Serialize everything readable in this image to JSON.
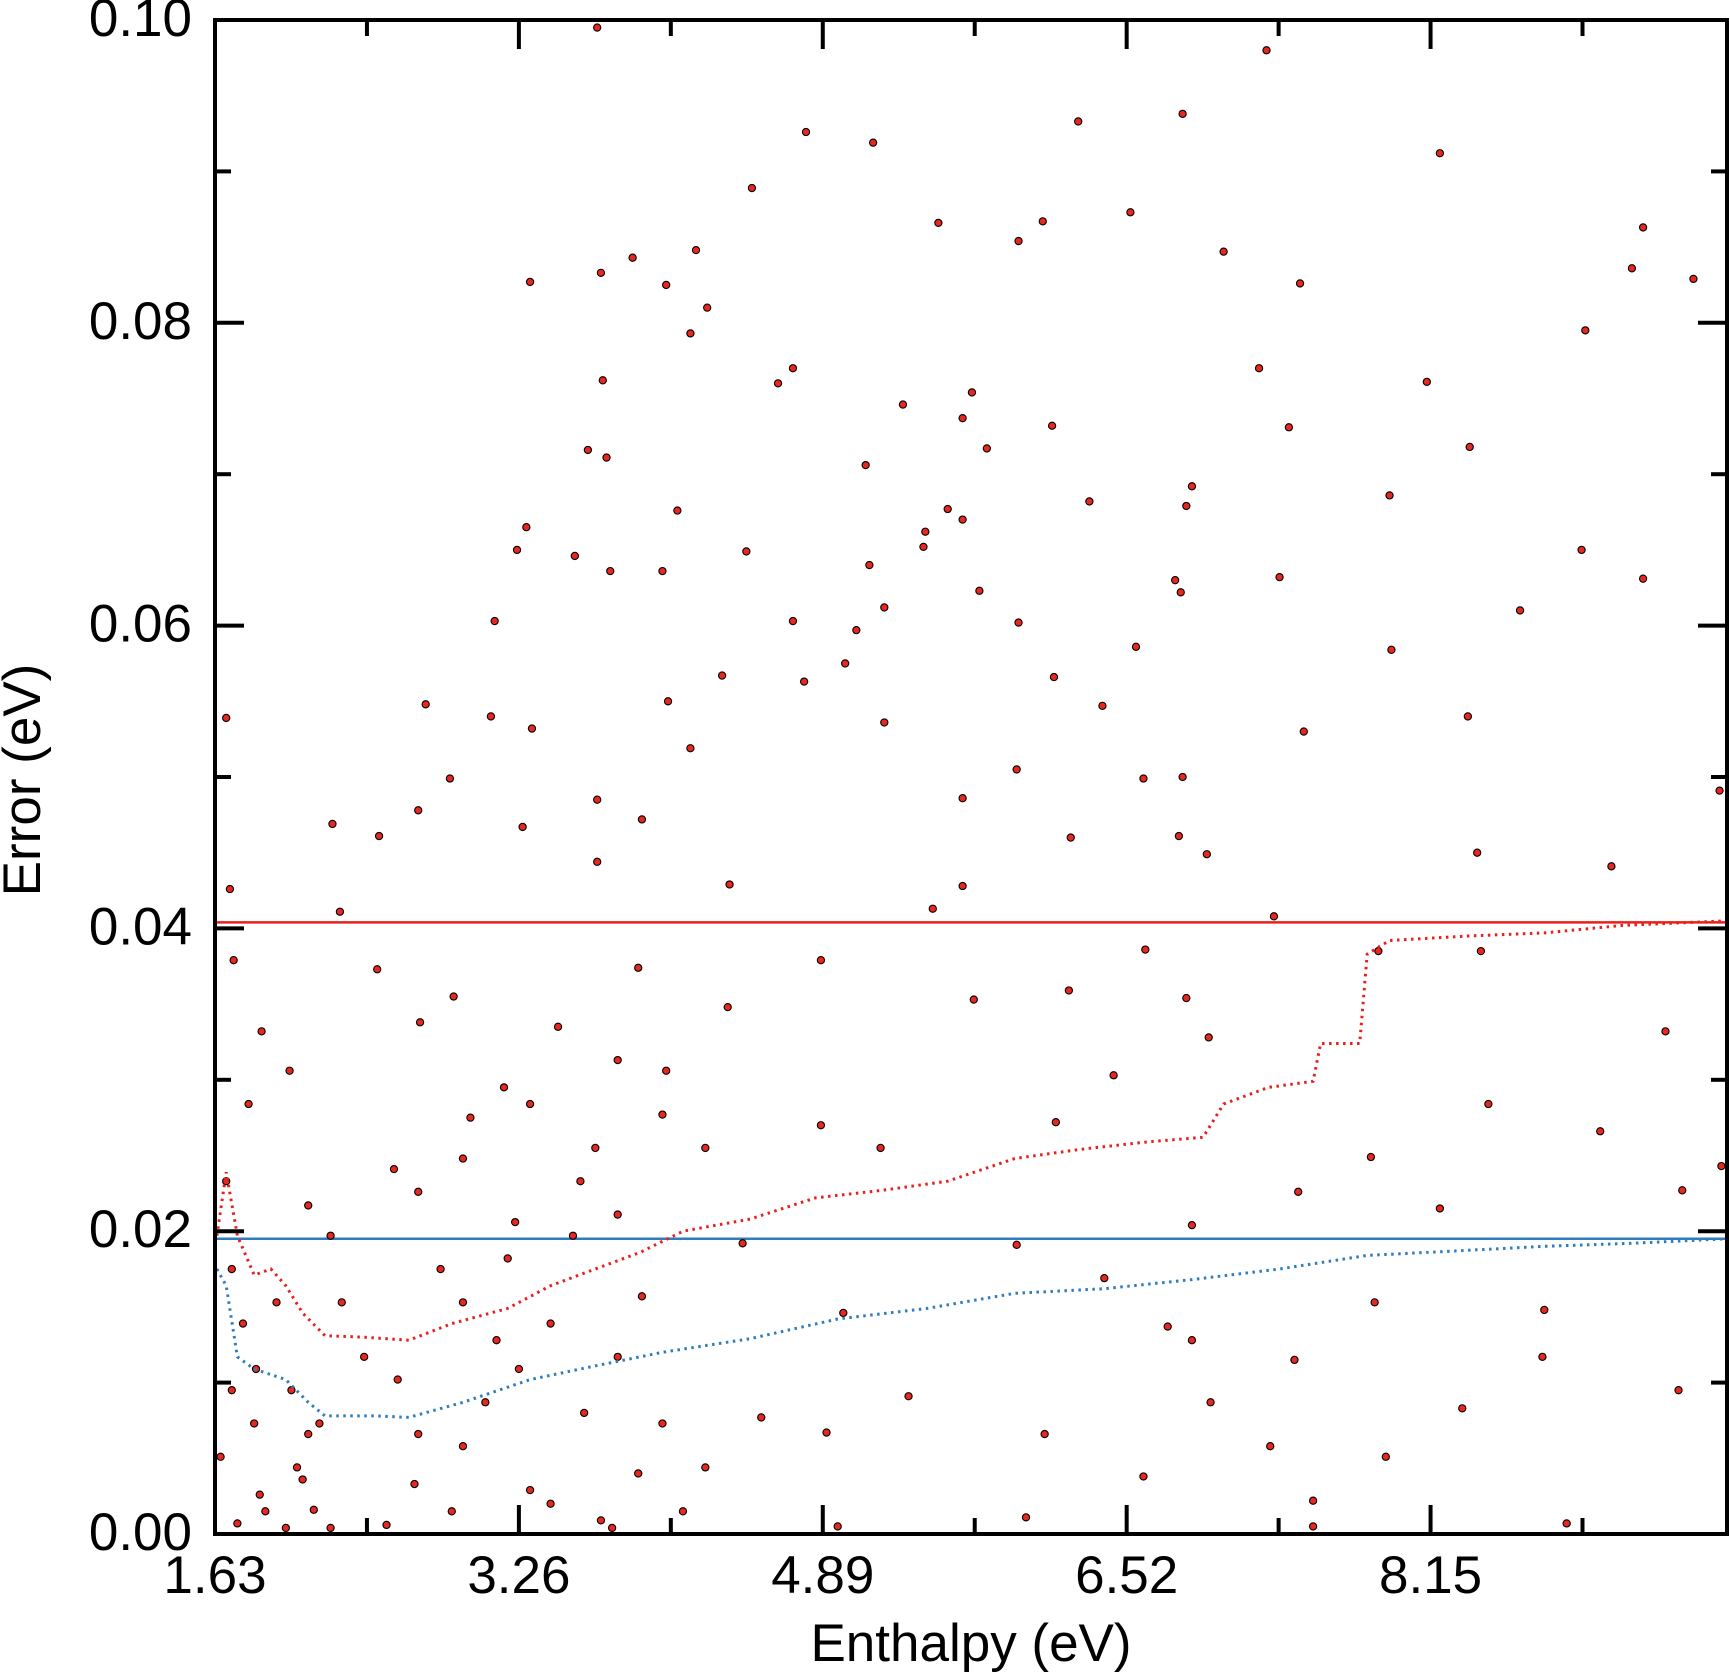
{
  "chart_data": {
    "type": "scatter",
    "xlabel": "Enthalpy (eV)",
    "ylabel": "Error (eV)",
    "xlim": [
      1.63,
      9.74
    ],
    "ylim": [
      0,
      0.1
    ],
    "xticks": [
      1.63,
      3.26,
      4.89,
      6.52,
      8.15
    ],
    "xminor_ticks": [
      2.445,
      4.075,
      5.705,
      7.335,
      8.965
    ],
    "yticks": [
      {
        "value": 0,
        "label": "0.00"
      },
      {
        "value": 0.02,
        "label": "0.02"
      },
      {
        "value": 0.04,
        "label": "0.04"
      },
      {
        "value": 0.06,
        "label": "0.06"
      },
      {
        "value": 0.08,
        "label": "0.08"
      },
      {
        "value": 0.1,
        "label": "0.10"
      }
    ],
    "yminor_ticks": [
      0.01,
      0.03,
      0.05,
      0.07,
      0.09
    ],
    "marker_color": "#e8281e",
    "marker_edge_color": "#000000",
    "x": [
      3.68,
      7.27,
      6.82,
      6.26,
      4.8,
      5.16,
      8.2,
      4.51,
      6.54,
      6.07,
      5.51,
      9.29,
      5.94,
      7.04,
      4.21,
      3.87,
      3.7,
      9.23,
      9.56,
      3.32,
      4.05,
      7.45,
      4.27,
      4.18,
      8.98,
      4.73,
      7.23,
      4.65,
      8.13,
      3.71,
      5.69,
      5.32,
      5.64,
      6.12,
      7.39,
      3.63,
      5.77,
      8.36,
      3.73,
      5.12,
      6.87,
      7.93,
      6.32,
      5.56,
      4.11,
      6.84,
      5.64,
      3.3,
      5.44,
      5.43,
      3.25,
      4.48,
      8.96,
      3.56,
      7.34,
      9.29,
      4.03,
      3.75,
      5.14,
      6.78,
      6.81,
      5.73,
      4.73,
      3.13,
      5.22,
      8.63,
      5.07,
      5.94,
      7.94,
      5.01,
      6.57,
      4.35,
      6.13,
      4.79,
      2.76,
      4.06,
      8.35,
      6.39,
      3.11,
      5.22,
      7.47,
      3.33,
      4.18,
      5.93,
      6.61,
      6.82,
      2.89,
      9.7,
      2.72,
      2.26,
      5.64,
      3.68,
      3.92,
      6.8,
      6.22,
      2.51,
      3.28,
      6.95,
      8.4,
      9.12,
      3.68,
      4.39,
      5.64,
      1.71,
      5.48,
      7.31,
      2.3,
      7.87,
      8.42,
      6.62,
      1.73,
      2.5,
      4.88,
      3.9,
      2.91,
      5.7,
      6.84,
      6.21,
      1.88,
      4.38,
      6.96,
      3.47,
      2.73,
      9.41,
      4.05,
      2.03,
      6.45,
      3.18,
      8.46,
      4.88,
      3.0,
      9.06,
      6.14,
      5.2,
      7.83,
      2.59,
      9.71,
      3.59,
      7.44,
      9.5,
      2.13,
      8.2,
      3.24,
      6.87,
      4.46,
      5.93,
      1.72,
      2.84,
      6.4,
      3.92,
      7.85,
      2.31,
      8.76,
      5.0,
      6.74,
      3.14,
      6.87,
      8.75,
      7.42,
      1.85,
      2.61,
      9.48,
      5.35,
      3.61,
      6.97,
      4.56,
      8.32,
      2.19,
      6.08,
      2.96,
      7.29,
      4.91,
      1.66,
      2.07,
      7.91,
      3.9,
      6.61,
      2.7,
      1.87,
      7.52,
      3.43,
      2.16,
      4.14,
      5.98,
      1.75,
      2.55,
      3.7,
      8.88,
      4.97,
      7.52,
      2.25,
      2.1,
      2.13,
      2.04,
      1.84,
      1.72,
      1.9,
      2.01,
      2.72,
      3.08,
      3.26,
      3.43,
      2.96,
      3.2,
      3.55,
      3.79,
      3.67,
      2.96,
      3.32,
      3.79,
      4.03,
      4.26,
      2.72,
      2.25,
      1.96,
      2.43,
      3.79,
      4.03,
      4.26,
      3.32,
      2.9,
      3.76,
      1.78,
      1.69,
      1.81,
      1.69
    ],
    "y": [
      0.0995,
      0.098,
      0.0938,
      0.0933,
      0.0926,
      0.0919,
      0.0912,
      0.0889,
      0.0873,
      0.0867,
      0.0866,
      0.0863,
      0.0854,
      0.0847,
      0.0848,
      0.0843,
      0.0833,
      0.0836,
      0.0829,
      0.0827,
      0.0825,
      0.0826,
      0.081,
      0.0793,
      0.0795,
      0.077,
      0.077,
      0.076,
      0.0761,
      0.0762,
      0.0754,
      0.0746,
      0.0737,
      0.0732,
      0.0731,
      0.0716,
      0.0717,
      0.0718,
      0.0711,
      0.0706,
      0.0692,
      0.0686,
      0.0682,
      0.0677,
      0.0676,
      0.0679,
      0.067,
      0.0665,
      0.0662,
      0.0652,
      0.065,
      0.0649,
      0.065,
      0.0646,
      0.0632,
      0.0631,
      0.0636,
      0.0636,
      0.064,
      0.063,
      0.0622,
      0.0623,
      0.0603,
      0.0603,
      0.0612,
      0.061,
      0.0597,
      0.0602,
      0.0584,
      0.0575,
      0.0586,
      0.0567,
      0.0566,
      0.0563,
      0.0548,
      0.055,
      0.054,
      0.0547,
      0.054,
      0.0536,
      0.053,
      0.0532,
      0.0519,
      0.0505,
      0.0499,
      0.05,
      0.0499,
      0.0491,
      0.0478,
      0.0469,
      0.0486,
      0.0485,
      0.0472,
      0.0461,
      0.046,
      0.0461,
      0.0467,
      0.0449,
      0.045,
      0.0441,
      0.0444,
      0.0429,
      0.0428,
      0.0426,
      0.0413,
      0.0408,
      0.0411,
      0.0385,
      0.0385,
      0.0386,
      0.0379,
      0.0373,
      0.0379,
      0.0374,
      0.0355,
      0.0353,
      0.0354,
      0.0359,
      0.0332,
      0.0348,
      0.0328,
      0.0335,
      0.0338,
      0.0332,
      0.0306,
      0.0306,
      0.0303,
      0.0295,
      0.0284,
      0.027,
      0.0275,
      0.0266,
      0.0272,
      0.0255,
      0.0249,
      0.0241,
      0.0243,
      0.0233,
      0.0226,
      0.0227,
      0.0217,
      0.0215,
      0.0206,
      0.0204,
      0.0192,
      0.0191,
      0.0175,
      0.0175,
      0.0169,
      0.0157,
      0.0153,
      0.0153,
      0.0148,
      0.0146,
      0.0137,
      0.0128,
      0.0128,
      0.0117,
      0.0115,
      0.0109,
      0.0102,
      0.0095,
      0.0091,
      0.008,
      0.0087,
      0.0077,
      0.0083,
      0.0073,
      0.0066,
      0.0058,
      0.0058,
      0.0067,
      0.0051,
      0.0044,
      0.0051,
      0.004,
      0.0038,
      0.0033,
      0.0026,
      0.0022,
      0.002,
      0.0016,
      0.0015,
      0.0011,
      0.0007,
      0.0006,
      0.0009,
      0.0007,
      0.0005,
      0.0005,
      0.0004,
      0.0036,
      0.0066,
      0.0095,
      0.0073,
      0.0095,
      0.0015,
      0.0004,
      0.0066,
      0.0087,
      0.0109,
      0.0139,
      0.0153,
      0.0182,
      0.0197,
      0.0211,
      0.0255,
      0.0248,
      0.0284,
      0.0313,
      0.0277,
      0.0255,
      0.0226,
      0.0197,
      0.0153,
      0.0117,
      0.0117,
      0.0073,
      0.0044,
      0.0029,
      0.0015,
      0.0004,
      0.0139,
      0.0233,
      0.0284,
      0.0539
    ],
    "hlines": [
      {
        "color": "#e8201c",
        "value": 0.0404
      },
      {
        "color": "#2f7dbd",
        "value": 0.0195
      }
    ],
    "lines": [
      {
        "color": "#e8201c",
        "style": "dotted",
        "x": [
          1.64,
          1.69,
          1.75,
          1.84,
          1.93,
          2.01,
          2.1,
          2.22,
          2.43,
          2.67,
          2.9,
          3.2,
          3.43,
          3.67,
          3.91,
          4.14,
          4.5,
          4.85,
          5.21,
          5.56,
          5.92,
          6.27,
          6.63,
          6.93,
          7.04,
          7.28,
          7.52,
          7.56,
          7.77,
          7.81,
          7.93,
          8.35,
          8.76,
          9.18,
          9.74
        ],
        "y": [
          0.0197,
          0.0239,
          0.0197,
          0.0171,
          0.0175,
          0.0164,
          0.0146,
          0.0131,
          0.013,
          0.0128,
          0.0139,
          0.0149,
          0.0164,
          0.0175,
          0.0186,
          0.02,
          0.0208,
          0.0222,
          0.0227,
          0.0233,
          0.0248,
          0.0254,
          0.0259,
          0.0262,
          0.0284,
          0.0295,
          0.0299,
          0.0324,
          0.0324,
          0.0383,
          0.0392,
          0.0395,
          0.0397,
          0.0402,
          0.0405
        ]
      },
      {
        "color": "#2f7dbd",
        "style": "dotted",
        "x": [
          1.64,
          1.69,
          1.75,
          1.84,
          2.01,
          2.13,
          2.22,
          2.49,
          2.67,
          2.96,
          3.32,
          3.67,
          4.03,
          4.5,
          4.97,
          5.45,
          5.92,
          6.4,
          6.87,
          7.34,
          7.81,
          8.29,
          8.76,
          9.23,
          9.74
        ],
        "y": [
          0.0175,
          0.0164,
          0.0117,
          0.0109,
          0.0102,
          0.0087,
          0.0078,
          0.0078,
          0.0077,
          0.0087,
          0.0102,
          0.0111,
          0.012,
          0.0129,
          0.0142,
          0.0149,
          0.0159,
          0.0162,
          0.0168,
          0.0175,
          0.0184,
          0.0187,
          0.019,
          0.0192,
          0.0195
        ]
      }
    ]
  }
}
